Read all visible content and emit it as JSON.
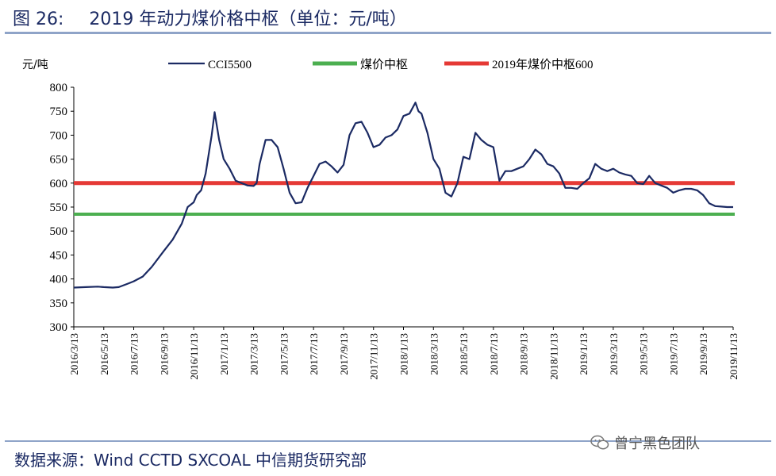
{
  "header": {
    "figure_label": "图 26:",
    "title": "2019 年动力煤价格中枢（单位：元/吨）"
  },
  "footer": {
    "source": "数据来源：Wind CCTD SXCOAL  中信期货研究部",
    "watermark": "曾宁黑色团队",
    "watermark_icon": "wechat-icon"
  },
  "chart_data": {
    "type": "line",
    "title": "2019 年动力煤价格中枢（单位：元/吨）",
    "ylabel": "元/吨",
    "xlabel": "",
    "ylim": [
      300,
      800
    ],
    "yticks": [
      800,
      750,
      700,
      650,
      600,
      550,
      500,
      450,
      400,
      350,
      300
    ],
    "x_tick_labels": [
      "2016/3/13",
      "2016/5/13",
      "2016/7/13",
      "2016/9/13",
      "2016/11/13",
      "2017/1/13",
      "2017/3/13",
      "2017/5/13",
      "2017/7/13",
      "2017/9/13",
      "2017/11/13",
      "2018/1/13",
      "2018/3/13",
      "2018/5/13",
      "2018/7/13",
      "2018/9/13",
      "2018/11/13",
      "2019/1/13",
      "2019/3/13",
      "2019/5/13",
      "2019/7/13",
      "2019/9/13",
      "2019/11/13"
    ],
    "legend_position": "top",
    "grid": false,
    "series": [
      {
        "name": "CCI5500",
        "color": "#1b2a63",
        "x": [
          0,
          0.4,
          0.8,
          1.0,
          1.3,
          1.5,
          1.8,
          2.0,
          2.3,
          2.6,
          3.0,
          3.3,
          3.6,
          3.8,
          4.0,
          4.1,
          4.25,
          4.4,
          4.5,
          4.6,
          4.7,
          4.85,
          5.0,
          5.2,
          5.4,
          5.6,
          5.8,
          6.0,
          6.1,
          6.2,
          6.4,
          6.6,
          6.8,
          7.0,
          7.2,
          7.4,
          7.6,
          7.8,
          8.0,
          8.2,
          8.4,
          8.6,
          8.8,
          9.0,
          9.2,
          9.4,
          9.6,
          9.8,
          10.0,
          10.2,
          10.4,
          10.6,
          10.8,
          11.0,
          11.2,
          11.4,
          11.5,
          11.6,
          11.8,
          12.0,
          12.2,
          12.4,
          12.6,
          12.8,
          13.0,
          13.2,
          13.4,
          13.6,
          13.8,
          14.0,
          14.2,
          14.4,
          14.6,
          14.8,
          15.0,
          15.2,
          15.4,
          15.6,
          15.8,
          16.0,
          16.2,
          16.4,
          16.6,
          16.8,
          17.0,
          17.2,
          17.4,
          17.6,
          17.8,
          18.0,
          18.2,
          18.4,
          18.6,
          18.8,
          19.0,
          19.2,
          19.4,
          19.6,
          19.8,
          20.0,
          20.2,
          20.4,
          20.6,
          20.8,
          21.0,
          21.2,
          21.4,
          21.6,
          21.8,
          22.0
        ],
        "values": [
          382,
          383,
          384,
          383,
          382,
          383,
          390,
          395,
          405,
          425,
          458,
          482,
          515,
          550,
          560,
          575,
          585,
          620,
          660,
          700,
          748,
          690,
          650,
          630,
          605,
          600,
          595,
          594,
          600,
          640,
          690,
          690,
          675,
          630,
          580,
          558,
          560,
          590,
          615,
          640,
          645,
          635,
          622,
          638,
          700,
          725,
          728,
          705,
          675,
          680,
          695,
          700,
          712,
          740,
          745,
          768,
          750,
          745,
          705,
          650,
          630,
          580,
          572,
          600,
          655,
          650,
          705,
          690,
          680,
          675,
          605,
          625,
          625,
          630,
          635,
          650,
          670,
          660,
          640,
          635,
          620,
          590,
          590,
          588,
          600,
          610,
          640,
          630,
          625,
          630,
          622,
          618,
          615,
          600,
          598,
          615,
          600,
          595,
          590,
          580,
          585,
          588,
          588,
          585,
          575,
          558,
          552,
          551,
          550,
          550
        ]
      },
      {
        "name": "煤价中枢",
        "color": "#4caf50",
        "values": [
          535,
          535
        ]
      },
      {
        "name": "2019年煤价中枢600",
        "color": "#e53935",
        "values": [
          600,
          600
        ]
      }
    ]
  }
}
